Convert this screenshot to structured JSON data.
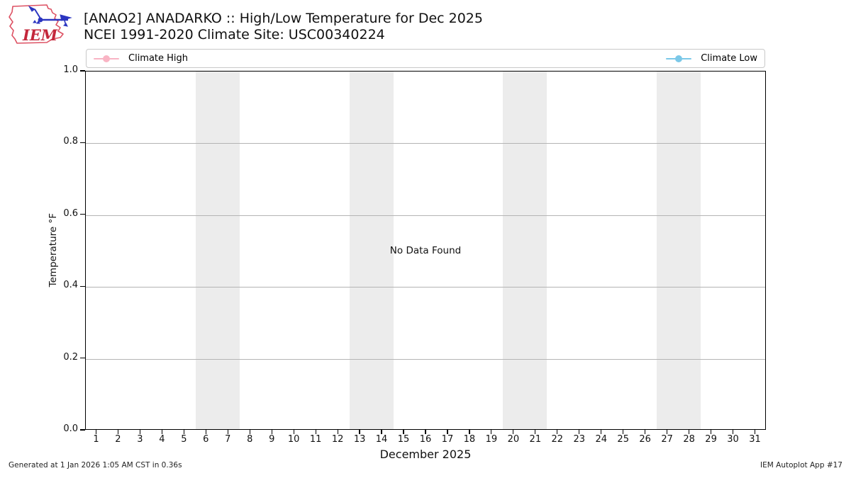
{
  "header": {
    "logo_text": "IEM",
    "title_line1": "[ANAO2] ANADARKO :: High/Low Temperature for Dec 2025",
    "title_line2": "NCEI 1991-2020 Climate Site: USC00340224"
  },
  "legend": {
    "items": [
      {
        "label": "Climate High",
        "color": "#f9b4c4"
      },
      {
        "label": "Climate Low",
        "color": "#7bc8e8"
      }
    ]
  },
  "chart_data": {
    "type": "line",
    "title": "[ANAO2] ANADARKO :: High/Low Temperature for Dec 2025",
    "subtitle": "NCEI 1991-2020 Climate Site: USC00340224",
    "xlabel": "December 2025",
    "ylabel": "Temperature °F",
    "x_ticks": [
      1,
      2,
      3,
      4,
      5,
      6,
      7,
      8,
      9,
      10,
      11,
      12,
      13,
      14,
      15,
      16,
      17,
      18,
      19,
      20,
      21,
      22,
      23,
      24,
      25,
      26,
      27,
      28,
      29,
      30,
      31
    ],
    "y_ticks": [
      "0.0",
      "0.2",
      "0.4",
      "0.6",
      "0.8",
      "1.0"
    ],
    "ylim": [
      0.0,
      1.0
    ],
    "grid": "horizontal-only",
    "legend_position": "top full-width box: high at left, low at right",
    "no_data_message": "No Data Found",
    "weekend_bands": [
      [
        6,
        7
      ],
      [
        13,
        14
      ],
      [
        20,
        21
      ],
      [
        27,
        28
      ]
    ],
    "series": [
      {
        "name": "Climate High",
        "color": "#f9b4c4",
        "values": []
      },
      {
        "name": "Climate Low",
        "color": "#7bc8e8",
        "values": []
      }
    ],
    "colors": {
      "band": "#ececec",
      "grid": "#b4b4b4",
      "spine": "#000000"
    }
  },
  "footer": {
    "left": "Generated at 1 Jan 2026 1:05 AM CST in 0.36s",
    "right": "IEM Autoplot App #17"
  }
}
